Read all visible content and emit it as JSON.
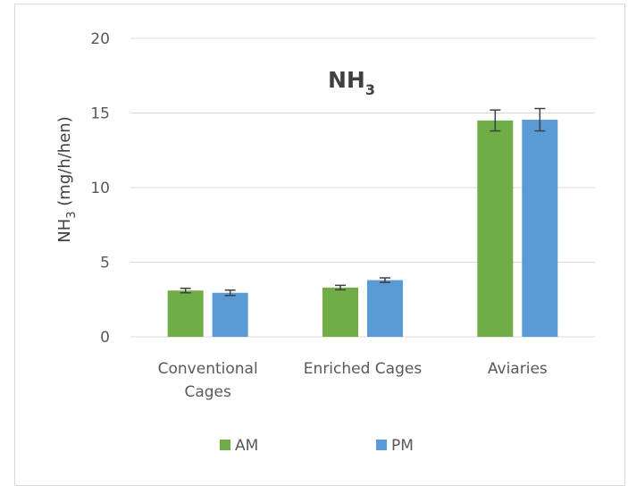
{
  "chart_data": {
    "type": "bar",
    "title": {
      "main": "NH",
      "sub": "3"
    },
    "ylabel": {
      "main": "NH",
      "sub": "3",
      "rest": " (mg/h/hen)"
    },
    "xlabel": "",
    "ylim": [
      0,
      20
    ],
    "yticks": [
      "0",
      "5",
      "10",
      "15",
      "20"
    ],
    "grid": true,
    "legend_position": "bottom",
    "categories": [
      [
        "Conventional",
        "Cages"
      ],
      [
        "Enriched Cages"
      ],
      [
        "Aviaries"
      ]
    ],
    "series": [
      {
        "name": "AM",
        "color": "#70ad47",
        "values": [
          3.1,
          3.3,
          14.5
        ],
        "errors": [
          0.15,
          0.15,
          0.7
        ]
      },
      {
        "name": "PM",
        "color": "#5b9bd5",
        "values": [
          2.95,
          3.8,
          14.55
        ],
        "errors": [
          0.18,
          0.15,
          0.75
        ]
      }
    ]
  }
}
